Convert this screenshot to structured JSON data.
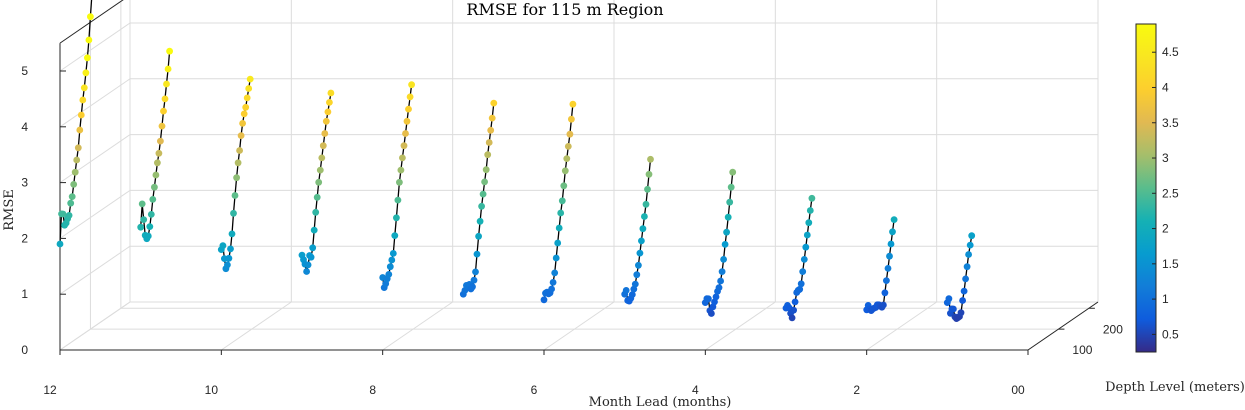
{
  "chart_data": {
    "type": "scatter",
    "title": "RMSE for 115 m Region",
    "xlabel": "Month Lead (months)",
    "ylabel": "Depth Level (meters)",
    "zlabel": "RMSE",
    "xlim": [
      0,
      12
    ],
    "ylim": [
      0,
      230
    ],
    "zlim": [
      0,
      5.5
    ],
    "xticks": [
      "12",
      "10",
      "8",
      "6",
      "4",
      "2",
      "00"
    ],
    "yticks": [
      "100",
      "200"
    ],
    "zticks": [
      "0",
      "1",
      "2",
      "3",
      "4",
      "5"
    ],
    "colorbar": {
      "ticks": [
        "0.5",
        "1",
        "1.5",
        "2",
        "2.5",
        "3",
        "3.5",
        "4",
        "4.5"
      ],
      "min": 0.25,
      "max": 4.9,
      "colormap": "parula"
    },
    "grid": true,
    "depth_levels": [
      0,
      5,
      10,
      15,
      20,
      25,
      30,
      35,
      40,
      45,
      50,
      55,
      60,
      65,
      70,
      75,
      80,
      85,
      90,
      95,
      100,
      105,
      110,
      115,
      120,
      125,
      130,
      135,
      140,
      145,
      150,
      155,
      160,
      165,
      170,
      175,
      180,
      185,
      190,
      195,
      200,
      205,
      210,
      215,
      220,
      225
    ],
    "series": [
      {
        "lead": 12,
        "values": [
          1.9,
          2.42,
          2.4,
          2.18,
          2.2,
          2.26,
          2.3,
          2.5,
          2.6,
          2.8,
          3.0,
          3.2,
          3.4,
          3.7,
          3.95,
          4.2,
          4.4,
          4.65,
          4.9,
          5.2,
          5.6,
          6.0
        ]
      },
      {
        "lead": 11,
        "values": [
          2.2,
          2.6,
          2.3,
          2.0,
          1.92,
          1.95,
          2.1,
          2.3,
          2.55,
          2.75,
          2.95,
          3.15,
          3.3,
          3.5,
          3.75,
          4.0,
          4.2,
          4.45,
          4.7,
          5.0
        ]
      },
      {
        "lead": 10,
        "values": [
          1.8,
          1.85,
          1.6,
          1.4,
          1.45,
          1.55,
          1.7,
          1.95,
          2.3,
          2.6,
          2.9,
          3.15,
          3.35,
          3.6,
          3.8,
          3.95,
          4.05,
          4.2,
          4.35,
          4.5
        ]
      },
      {
        "lead": 9,
        "values": [
          1.7,
          1.6,
          1.5,
          1.35,
          1.45,
          1.6,
          1.55,
          1.7,
          2.0,
          2.3,
          2.55,
          2.8,
          3.0,
          3.2,
          3.4,
          3.6,
          3.8,
          3.95,
          4.1,
          4.25
        ]
      },
      {
        "lead": 8,
        "values": [
          1.3,
          1.1,
          1.15,
          1.22,
          1.28,
          1.4,
          1.5,
          1.6,
          1.9,
          2.2,
          2.5,
          2.8,
          3.0,
          3.2,
          3.4,
          3.6,
          3.8,
          4.0,
          4.2,
          4.4
        ]
      },
      {
        "lead": 7,
        "values": [
          1.0,
          1.05,
          1.12,
          1.08,
          1.1,
          1.0,
          1.02,
          1.12,
          1.25,
          1.55,
          1.85,
          2.1,
          2.35,
          2.55,
          2.75,
          2.95,
          3.2,
          3.4,
          3.6,
          3.8,
          4.05
        ]
      },
      {
        "lead": 6,
        "values": [
          0.9,
          1.0,
          1.0,
          0.95,
          0.95,
          1.0,
          1.1,
          1.25,
          1.5,
          1.75,
          2.0,
          2.25,
          2.45,
          2.7,
          2.95,
          3.15,
          3.35,
          3.55,
          3.8,
          4.05
        ]
      },
      {
        "lead": 5,
        "values": [
          1.0,
          1.05,
          0.85,
          0.82,
          0.85,
          0.9,
          0.98,
          1.05,
          1.2,
          1.35,
          1.55,
          1.75,
          1.95,
          2.15,
          2.35,
          2.6,
          2.85,
          3.1
        ]
      },
      {
        "lead": 4,
        "values": [
          0.85,
          0.9,
          0.88,
          0.65,
          0.58,
          0.68,
          0.75,
          0.82,
          0.9,
          0.95,
          1.05,
          1.2,
          1.4,
          1.65,
          1.85,
          2.1,
          2.35,
          2.6,
          2.85
        ]
      },
      {
        "lead": 3,
        "values": [
          0.75,
          0.78,
          0.72,
          0.6,
          0.5,
          0.62,
          0.75,
          0.9,
          0.92,
          0.92,
          1.0,
          1.2,
          1.4,
          1.6,
          1.8,
          2.0,
          2.2,
          2.4
        ]
      },
      {
        "lead": 2,
        "values": [
          0.72,
          0.78,
          0.7,
          0.65,
          0.66,
          0.66,
          0.65,
          0.68,
          0.66,
          0.62,
          0.58,
          0.6,
          0.8,
          1.0,
          1.2,
          1.4,
          1.6,
          1.8,
          2.0
        ]
      },
      {
        "lead": 1,
        "values": [
          0.85,
          0.9,
          0.62,
          0.68,
          0.66,
          0.5,
          0.45,
          0.45,
          0.45,
          0.5,
          0.7,
          0.85,
          1.05,
          1.25,
          1.45,
          1.6,
          1.75
        ]
      }
    ]
  }
}
